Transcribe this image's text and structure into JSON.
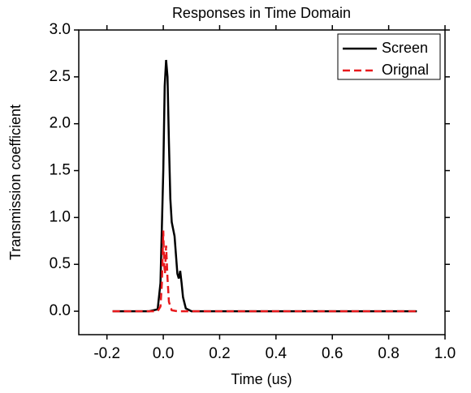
{
  "chart_data": {
    "type": "line",
    "title": "Responses in Time Domain",
    "xlabel": "Time (us)",
    "ylabel": "Transmission coefficient",
    "xlim": [
      -0.3,
      1.0
    ],
    "ylim": [
      -0.25,
      3.0
    ],
    "xticks": [
      -0.2,
      {
        "value": 0,
        "label": "0.0"
      },
      0.2,
      0.4,
      0.6,
      0.8,
      {
        "value": 1,
        "label": "1.0"
      }
    ],
    "yticks": [
      {
        "value": 0,
        "label": "0.0"
      },
      0.5,
      {
        "value": 1,
        "label": "1.0"
      },
      1.5,
      {
        "value": 2,
        "label": "2.0"
      },
      2.5,
      {
        "value": 3,
        "label": "3.0"
      }
    ],
    "legend": "upper right",
    "series": [
      {
        "name": "Screen",
        "color": "#000000",
        "dash": false,
        "x": [
          -0.18,
          -0.05,
          -0.02,
          -0.01,
          0,
          0.005,
          0.01,
          0.015,
          0.02,
          0.025,
          0.03,
          0.04,
          0.05,
          0.055,
          0.06,
          0.065,
          0.07,
          0.08,
          0.1,
          0.2,
          0.9
        ],
        "values": [
          0,
          0,
          0.02,
          0.3,
          1.5,
          2.4,
          2.68,
          2.5,
          1.8,
          1.2,
          0.95,
          0.8,
          0.4,
          0.35,
          0.43,
          0.3,
          0.15,
          0.03,
          0,
          0,
          0
        ]
      },
      {
        "name": "Orignal",
        "color": "#e8191c",
        "dash": true,
        "x": [
          -0.18,
          -0.02,
          -0.01,
          -0.005,
          0,
          0.003,
          0.006,
          0.01,
          0.015,
          0.02,
          0.03,
          0.05,
          0.9
        ],
        "values": [
          0,
          0,
          0.05,
          0.3,
          0.86,
          0.5,
          0.4,
          0.7,
          0.35,
          0.1,
          0.01,
          0,
          0
        ]
      }
    ]
  }
}
